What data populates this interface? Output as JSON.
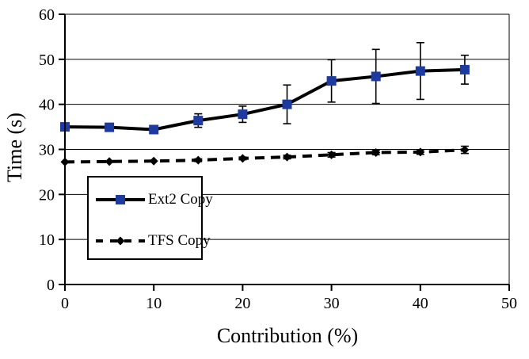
{
  "chart_data": {
    "type": "line",
    "title": "",
    "xlabel": "Contribution (%)",
    "ylabel": "Time (s)",
    "x": [
      0,
      5,
      10,
      15,
      20,
      25,
      30,
      35,
      40,
      45
    ],
    "xlim": [
      0,
      50
    ],
    "ylim": [
      0,
      60
    ],
    "x_ticks": [
      0,
      10,
      20,
      30,
      40,
      50
    ],
    "y_ticks": [
      0,
      10,
      20,
      30,
      40,
      50,
      60
    ],
    "grid": "horizontal-only",
    "legend_position": "inside-lower-left",
    "colors": {
      "ext2_marker": "#1c3aa0",
      "line": "#000000",
      "background": "#ffffff"
    },
    "series": [
      {
        "name": "Ext2 Copy",
        "marker": "square",
        "marker_color": "#1c3aa0",
        "line_style": "solid",
        "line_color": "#000000",
        "values": [
          35.0,
          34.9,
          34.4,
          36.4,
          37.8,
          40.0,
          45.2,
          46.2,
          47.4,
          47.7
        ],
        "error": [
          0,
          0,
          0,
          1.5,
          1.8,
          4.3,
          4.7,
          6.0,
          6.3,
          3.2
        ]
      },
      {
        "name": "TFS Copy",
        "marker": "diamond",
        "marker_color": "#000000",
        "line_style": "dashed",
        "line_color": "#000000",
        "values": [
          27.2,
          27.3,
          27.4,
          27.6,
          28.0,
          28.3,
          28.8,
          29.3,
          29.4,
          29.9
        ],
        "error": [
          0,
          0,
          0,
          0.3,
          0.3,
          0.4,
          0.5,
          0.5,
          0.5,
          0.8
        ]
      }
    ]
  }
}
